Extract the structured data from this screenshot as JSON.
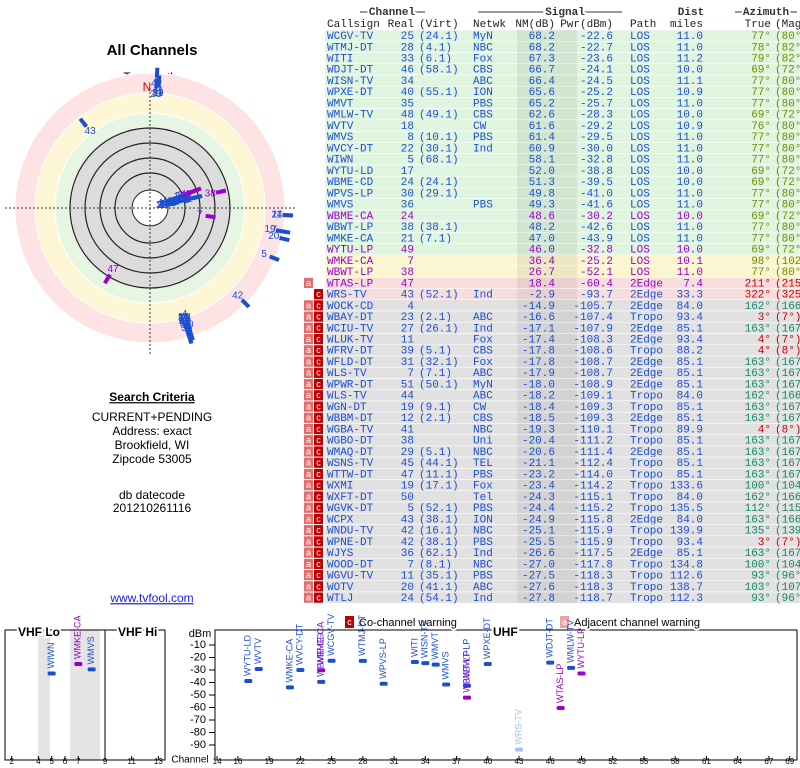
{
  "left": {
    "title": "All Channels",
    "north_label": "TrueNorth",
    "north": "N",
    "criteria_title": "Search Criteria",
    "criteria": [
      "CURRENT+PENDING",
      "Address: exact",
      "Brookfield, WI",
      "Zipcode 53005"
    ],
    "datecode_label": "db datecode",
    "datecode": "201210261116",
    "link": "www.tvfool.com"
  },
  "table": {
    "group_headers": [
      "Channel",
      "Signal",
      "Dist",
      "Azimuth"
    ],
    "headers": [
      "Callsign",
      "Real",
      "(Virt)",
      "Netwk",
      "NM(dB)",
      "Pwr(dBm)",
      "Path",
      "miles",
      "True",
      "(Magn)"
    ],
    "rows": [
      {
        "cells": [
          "WCGV-TV",
          "25",
          "(24.1)",
          "MyN",
          "68.2",
          "-22.6",
          "LOS",
          "11.0",
          "77°",
          "(80°)"
        ],
        "color": "#1c4fd0"
      },
      {
        "cells": [
          "WTMJ-DT",
          "28",
          "(4.1)",
          "NBC",
          "68.2",
          "-22.7",
          "LOS",
          "11.0",
          "78°",
          "(82°)"
        ],
        "color": "#1c4fd0"
      },
      {
        "cells": [
          "WITI",
          "33",
          "(6.1)",
          "Fox",
          "67.3",
          "-23.6",
          "LOS",
          "11.2",
          "79°",
          "(82°)"
        ],
        "color": "#1c4fd0"
      },
      {
        "cells": [
          "WDJT-DT",
          "46",
          "(58.1)",
          "CBS",
          "66.7",
          "-24.1",
          "LOS",
          "10.0",
          "69°",
          "(72°)"
        ],
        "color": "#1c4fd0"
      },
      {
        "cells": [
          "WISN-TV",
          "34",
          null,
          "ABC",
          "66.4",
          "-24.5",
          "LOS",
          "11.1",
          "77°",
          "(80°)"
        ],
        "color": "#1c4fd0"
      },
      {
        "cells": [
          "WPXE-DT",
          "40",
          "(55.1)",
          "ION",
          "65.6",
          "-25.2",
          "LOS",
          "10.9",
          "77°",
          "(80°)"
        ],
        "color": "#1c4fd0"
      },
      {
        "cells": [
          "WMVT",
          "35",
          null,
          "PBS",
          "65.2",
          "-25.7",
          "LOS",
          "11.0",
          "77°",
          "(80°)"
        ],
        "color": "#1c4fd0"
      },
      {
        "cells": [
          "WMLW-TV",
          "48",
          "(49.1)",
          "CBS",
          "62.6",
          "-28.3",
          "LOS",
          "10.0",
          "69°",
          "(72°)"
        ],
        "color": "#1c4fd0"
      },
      {
        "cells": [
          "WVTV",
          "18",
          null,
          "CW",
          "61.6",
          "-29.2",
          "LOS",
          "10.9",
          "76°",
          "(80°)"
        ],
        "color": "#1c4fd0"
      },
      {
        "cells": [
          "WMVS",
          "8",
          "(10.1)",
          "PBS",
          "61.4",
          "-29.5",
          "LOS",
          "11.0",
          "77°",
          "(80°)"
        ],
        "color": "#1c4fd0"
      },
      {
        "cells": [
          "WVCY-DT",
          "22",
          "(30.1)",
          "Ind",
          "60.9",
          "-30.0",
          "LOS",
          "11.0",
          "77°",
          "(80°)"
        ],
        "color": "#1c4fd0"
      },
      {
        "cells": [
          "WIWN",
          "5",
          "(68.1)",
          null,
          "58.1",
          "-32.8",
          "LOS",
          "11.0",
          "77°",
          "(80°)"
        ],
        "color": "#1c4fd0"
      },
      {
        "cells": [
          "WYTU-LD",
          "17",
          null,
          null,
          "52.0",
          "-38.8",
          "LOS",
          "10.0",
          "69°",
          "(72°)"
        ],
        "color": "#1c4fd0"
      },
      {
        "cells": [
          "WBME-CD",
          "24",
          "(24.1)",
          null,
          "51.3",
          "-39.5",
          "LOS",
          "10.0",
          "69°",
          "(72°)"
        ],
        "color": "#1c4fd0"
      },
      {
        "cells": [
          "WPVS-LP",
          "30",
          "(29.1)",
          null,
          "49.8",
          "-41.0",
          "LOS",
          "11.0",
          "77°",
          "(80°)"
        ],
        "color": "#1c4fd0"
      },
      {
        "cells": [
          "WMVS",
          "36",
          null,
          "PBS",
          "49.3",
          "-41.6",
          "LOS",
          "11.0",
          "77°",
          "(80°)"
        ],
        "color": "#1c4fd0"
      },
      {
        "cells": [
          "WBME-CA",
          "24",
          null,
          null,
          "48.6",
          "-30.2",
          "LOS",
          "10.0",
          "69°",
          "(72°)"
        ],
        "color": "#9900cc"
      },
      {
        "cells": [
          "WBWT-LP",
          "38",
          "(38.1)",
          null,
          "48.2",
          "-42.6",
          "LOS",
          "11.0",
          "77°",
          "(80°)"
        ],
        "color": "#1c4fd0"
      },
      {
        "cells": [
          "WMKE-CA",
          "21",
          "(7.1)",
          null,
          "47.0",
          "-43.9",
          "LOS",
          "11.0",
          "77°",
          "(80°)"
        ],
        "color": "#1c4fd0"
      },
      {
        "cells": [
          "WYTU-LP",
          "49",
          null,
          null,
          "46.0",
          "-32.8",
          "LOS",
          "10.0",
          "69°",
          "(72°)"
        ],
        "color": "#9900cc"
      },
      {
        "cells": [
          "WMKE-CA",
          "7",
          null,
          null,
          "36.4",
          "-25.2",
          "LOS",
          "10.1",
          "98°",
          "(102°)"
        ],
        "color": "#9900cc"
      },
      {
        "cells": [
          "WBWT-LP",
          "38",
          null,
          null,
          "26.7",
          "-52.1",
          "LOS",
          "11.0",
          "77°",
          "(80°)"
        ],
        "color": "#9900cc"
      },
      {
        "flags": [
          "a"
        ],
        "cells": [
          "WTAS-LP",
          "47",
          null,
          null,
          "18.4",
          "-60.4",
          "2Edge",
          "7.4",
          "211°",
          "(215°)"
        ],
        "color": "#9900cc"
      },
      {
        "flags": [
          "c"
        ],
        "cells": [
          "WRS-TV",
          "43",
          "(52.1)",
          "Ind",
          "-2.9",
          "-93.7",
          "2Edge",
          "33.3",
          "322°",
          "(325°)"
        ],
        "color": "#1c4fd0"
      },
      {
        "flags": [
          "a",
          "c"
        ],
        "cells": [
          "WOCK-CD",
          "4",
          null,
          null,
          "-14.9",
          "-105.7",
          "2Edge",
          "84.0",
          "162°",
          "(166°)"
        ],
        "color": "#1c4fd0"
      },
      {
        "flags": [
          "a",
          "c"
        ],
        "cells": [
          "WBAY-DT",
          "23",
          "(2.1)",
          "ABC",
          "-16.6",
          "-107.4",
          "Tropo",
          "93.4",
          "3°",
          "(7°)"
        ],
        "color": "#1c4fd0"
      },
      {
        "flags": [
          "a",
          "c"
        ],
        "cells": [
          "WCIU-TV",
          "27",
          "(26.1)",
          "Ind",
          "-17.1",
          "-107.9",
          "2Edge",
          "85.1",
          "163°",
          "(167°)"
        ],
        "color": "#1c4fd0"
      },
      {
        "flags": [
          "a",
          "c"
        ],
        "cells": [
          "WLUK-TV",
          "11",
          null,
          "Fox",
          "-17.4",
          "-108.3",
          "2Edge",
          "93.4",
          "4°",
          "(7°)"
        ],
        "color": "#1c4fd0"
      },
      {
        "flags": [
          "a",
          "c"
        ],
        "cells": [
          "WFRV-DT",
          "39",
          "(5.1)",
          "CBS",
          "-17.8",
          "-108.6",
          "Tropo",
          "88.2",
          "4°",
          "(8°)"
        ],
        "color": "#1c4fd0"
      },
      {
        "flags": [
          "a",
          "c"
        ],
        "cells": [
          "WFLD-DT",
          "31",
          "(32.1)",
          "Fox",
          "-17.8",
          "-108.7",
          "2Edge",
          "85.1",
          "163°",
          "(167°)"
        ],
        "color": "#1c4fd0"
      },
      {
        "flags": [
          "a",
          "c"
        ],
        "cells": [
          "WLS-TV",
          "7",
          "(7.1)",
          "ABC",
          "-17.9",
          "-108.7",
          "2Edge",
          "85.1",
          "163°",
          "(167°)"
        ],
        "color": "#1c4fd0"
      },
      {
        "flags": [
          "a",
          "c"
        ],
        "cells": [
          "WPWR-DT",
          "51",
          "(50.1)",
          "MyN",
          "-18.0",
          "-108.9",
          "2Edge",
          "85.1",
          "163°",
          "(167°)"
        ],
        "color": "#1c4fd0"
      },
      {
        "flags": [
          "a",
          "c"
        ],
        "cells": [
          "WLS-TV",
          "44",
          null,
          "ABC",
          "-18.2",
          "-109.1",
          "Tropo",
          "84.0",
          "162°",
          "(166°)"
        ],
        "color": "#1c4fd0"
      },
      {
        "flags": [
          "a",
          "c"
        ],
        "cells": [
          "WGN-DT",
          "19",
          "(9.1)",
          "CW",
          "-18.4",
          "-109.3",
          "Tropo",
          "85.1",
          "163°",
          "(167°)"
        ],
        "color": "#1c4fd0"
      },
      {
        "flags": [
          "a",
          "c"
        ],
        "cells": [
          "WBBM-DT",
          "12",
          "(2.1)",
          "CBS",
          "-18.5",
          "-109.3",
          "2Edge",
          "85.1",
          "163°",
          "(167°)"
        ],
        "color": "#1c4fd0"
      },
      {
        "flags": [
          "a",
          "c"
        ],
        "cells": [
          "WGBA-TV",
          "41",
          null,
          "NBC",
          "-19.3",
          "-110.1",
          "Tropo",
          "89.9",
          "4°",
          "(8°)"
        ],
        "color": "#1c4fd0"
      },
      {
        "flags": [
          "a",
          "c"
        ],
        "cells": [
          "WGBO-DT",
          "38",
          null,
          "Uni",
          "-20.4",
          "-111.2",
          "Tropo",
          "85.1",
          "163°",
          "(167°)"
        ],
        "color": "#1c4fd0"
      },
      {
        "flags": [
          "a",
          "c"
        ],
        "cells": [
          "WMAQ-DT",
          "29",
          "(5.1)",
          "NBC",
          "-20.6",
          "-111.4",
          "2Edge",
          "85.1",
          "163°",
          "(167°)"
        ],
        "color": "#1c4fd0"
      },
      {
        "flags": [
          "a",
          "c"
        ],
        "cells": [
          "WSNS-TV",
          "45",
          "(44.1)",
          "TEL",
          "-21.1",
          "-112.4",
          "Tropo",
          "85.1",
          "163°",
          "(167°)"
        ],
        "color": "#1c4fd0"
      },
      {
        "flags": [
          "a",
          "c"
        ],
        "cells": [
          "WTTW-DT",
          "47",
          "(11.1)",
          "PBS",
          "-23.2",
          "-114.0",
          "Tropo",
          "85.1",
          "163°",
          "(167°)"
        ],
        "color": "#1c4fd0"
      },
      {
        "flags": [
          "a",
          "c"
        ],
        "cells": [
          "WXMI",
          "19",
          "(17.1)",
          "Fox",
          "-23.4",
          "-114.2",
          "Tropo",
          "133.6",
          "100°",
          "(104°)"
        ],
        "color": "#1c4fd0"
      },
      {
        "flags": [
          "a",
          "c"
        ],
        "cells": [
          "WXFT-DT",
          "50",
          null,
          "Tel",
          "-24.3",
          "-115.1",
          "Tropo",
          "84.0",
          "162°",
          "(166°)"
        ],
        "color": "#1c4fd0"
      },
      {
        "flags": [
          "a",
          "c"
        ],
        "cells": [
          "WGVK-DT",
          "5",
          "(52.1)",
          "PBS",
          "-24.4",
          "-115.2",
          "Tropo",
          "135.5",
          "112°",
          "(115°)"
        ],
        "color": "#1c4fd0"
      },
      {
        "flags": [
          "a",
          "c"
        ],
        "cells": [
          "WCPX",
          "43",
          "(38.1)",
          "ION",
          "-24.9",
          "-115.8",
          "2Edge",
          "84.0",
          "163°",
          "(166°)"
        ],
        "color": "#1c4fd0"
      },
      {
        "flags": [
          "a",
          "c"
        ],
        "cells": [
          "WNDU-TV",
          "42",
          "(16.1)",
          "NBC",
          "-25.1",
          "-115.9",
          "Tropo",
          "139.9",
          "135°",
          "(139°)"
        ],
        "color": "#1c4fd0"
      },
      {
        "flags": [
          "a",
          "c"
        ],
        "cells": [
          "WPNE-DT",
          "42",
          "(38.1)",
          "PBS",
          "-25.5",
          "-115.9",
          "Tropo",
          "93.4",
          "3°",
          "(7°)"
        ],
        "color": "#1c4fd0"
      },
      {
        "flags": [
          "a",
          "c"
        ],
        "cells": [
          "WJYS",
          "36",
          "(62.1)",
          "Ind",
          "-26.6",
          "-117.5",
          "2Edge",
          "85.1",
          "163°",
          "(167°)"
        ],
        "color": "#1c4fd0"
      },
      {
        "flags": [
          "a",
          "c"
        ],
        "cells": [
          "WOOD-DT",
          "7",
          "(8.1)",
          "NBC",
          "-27.0",
          "-117.8",
          "Tropo",
          "134.8",
          "100°",
          "(104°)"
        ],
        "color": "#1c4fd0"
      },
      {
        "flags": [
          "a",
          "c"
        ],
        "cells": [
          "WGVU-TV",
          "11",
          "(35.1)",
          "PBS",
          "-27.5",
          "-118.3",
          "Tropo",
          "112.6",
          "93°",
          "(96°)"
        ],
        "color": "#1c4fd0"
      },
      {
        "flags": [
          "a",
          "c"
        ],
        "cells": [
          "WOTV",
          "20",
          "(41.1)",
          "ABC",
          "-27.6",
          "-118.3",
          "Tropo",
          "138.7",
          "103°",
          "(107°)"
        ],
        "color": "#1c4fd0"
      },
      {
        "flags": [
          "a",
          "c"
        ],
        "cells": [
          "WTLJ",
          "24",
          "(54.1)",
          "Ind",
          "-27.8",
          "-118.7",
          "Tropo",
          "112.3",
          "93°",
          "(96°)"
        ],
        "color": "#1c4fd0"
      }
    ]
  },
  "spectrum": {
    "bands": [
      "VHF Lo",
      "VHF Hi",
      "UHF"
    ],
    "y_label": "dBm",
    "x_label": "Channel",
    "ylim": [
      -102,
      2
    ],
    "yticks": [
      -10,
      -20,
      -30,
      -40,
      -50,
      -60,
      -70,
      -80,
      -90
    ],
    "vhf_xlim": [
      1.5,
      13.5
    ],
    "vhf_xticks": [
      2,
      4,
      5,
      6,
      7,
      9,
      11,
      13
    ],
    "uhf_xlim": [
      13.8,
      69.7
    ],
    "uhf_xticks": [
      14,
      16,
      19,
      22,
      25,
      28,
      31,
      34,
      37,
      40,
      43,
      46,
      49,
      52,
      55,
      58,
      61,
      64,
      67,
      69
    ],
    "legend": [
      {
        "icon": "c",
        "label": "Co-channel warning"
      },
      {
        "icon": "a",
        "label": "Adjacent channel warning"
      }
    ]
  }
}
